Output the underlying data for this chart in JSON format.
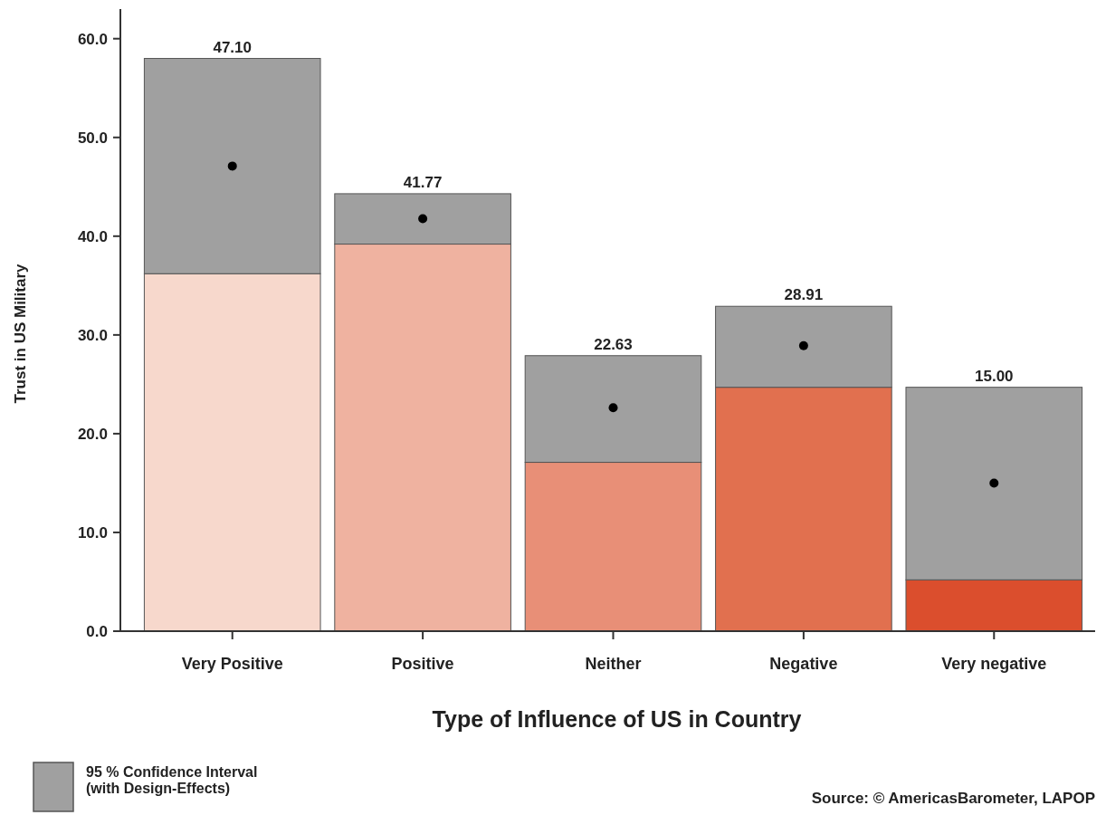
{
  "chart_data": {
    "type": "bar",
    "stacked": true,
    "xlabel": "Type of Influence of US in Country",
    "ylabel": "Trust in US Military",
    "categories": [
      "Very Positive",
      "Positive",
      "Neither",
      "Negative",
      "Very negative"
    ],
    "series": [
      {
        "colors": [
          "#f7d8cc",
          "#efb2a0",
          "#e88f77",
          "#e1704f",
          "#db4e2d"
        ],
        "values": [
          36.2,
          39.2,
          17.1,
          24.7,
          5.2
        ]
      },
      {
        "name": "95 % Confidence Interval (with Design-Effects)",
        "color": "#a0a0a0",
        "values": [
          21.8,
          5.1,
          10.8,
          8.2,
          19.5
        ]
      },
      {
        "type": "scatter",
        "color": "#000000",
        "x": [
          "Very Positive",
          "Positive",
          "Neither",
          "Negative",
          "Very negative"
        ],
        "values": [
          47.1,
          41.77,
          22.63,
          28.91,
          15.0
        ],
        "marker": "circle"
      }
    ],
    "ylim": [
      0,
      63
    ],
    "yticks": [
      {
        "value": 0,
        "label": "0.0"
      },
      {
        "value": 10,
        "label": "10.0"
      },
      {
        "value": 20,
        "label": "20.0"
      },
      {
        "value": 30,
        "label": "30.0"
      },
      {
        "value": 40,
        "label": "40.0"
      },
      {
        "value": 50,
        "label": "50.0"
      },
      {
        "value": 60,
        "label": "60.0"
      }
    ],
    "grid": false,
    "legend": "bottom left",
    "annotations": [
      {
        "text": "47.10",
        "x": "Very Positive",
        "y": 58.0
      },
      {
        "text": "41.77",
        "x": "Positive",
        "y": 44.3
      },
      {
        "text": "22.63",
        "x": "Neither",
        "y": 27.9
      },
      {
        "text": "28.91",
        "x": "Negative",
        "y": 32.9
      },
      {
        "text": "15.00",
        "x": "Very negative",
        "y": 24.7
      },
      "Source: © AmericasBarometer, LAPOP"
    ]
  }
}
